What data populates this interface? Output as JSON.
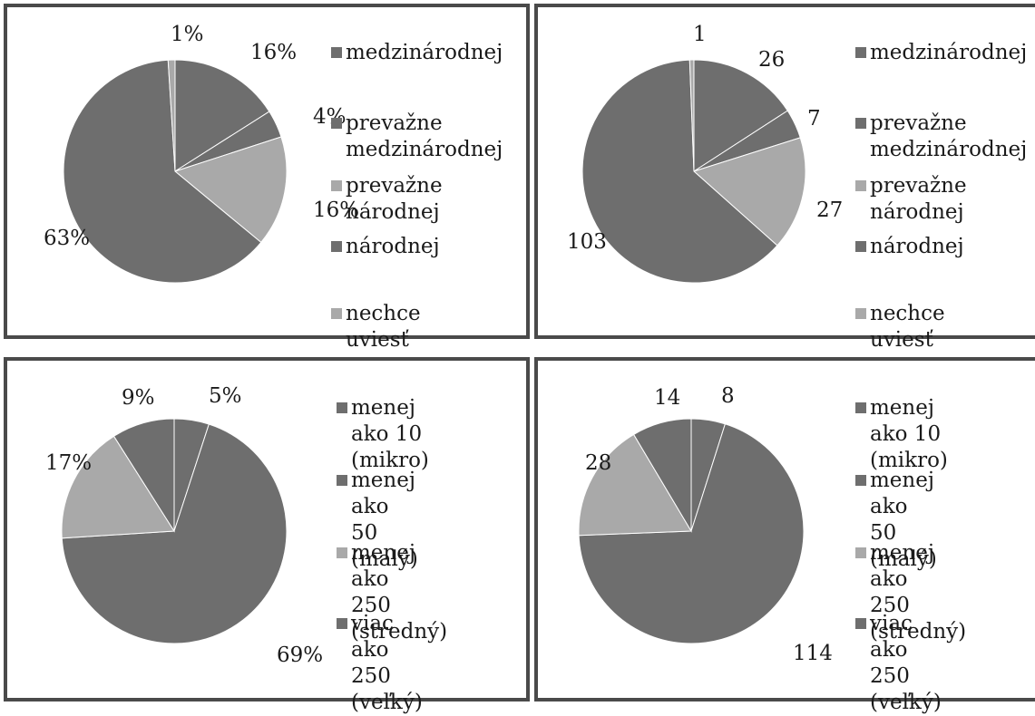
{
  "colors": {
    "slice_dark": "#6e6e6e",
    "slice_light": "#a9a9a9",
    "swatch_dark": "#6e6e6e",
    "swatch_light": "#a9a9a9",
    "border": "#4a4a4a"
  },
  "chart_data": [
    {
      "type": "pie",
      "categories": [
        "medzinárodnej",
        "prevažne medzinárodnej",
        "prevažne národnej",
        "národnej",
        "nechce uviesť"
      ],
      "values": [
        16,
        4,
        16,
        63,
        1
      ],
      "data_labels": [
        "16%",
        "4%",
        "16%",
        "63%",
        "1%"
      ],
      "slice_colors": [
        "#6e6e6e",
        "#6e6e6e",
        "#a9a9a9",
        "#6e6e6e",
        "#a9a9a9"
      ],
      "legend": {
        "position": "right",
        "items": [
          {
            "lines": [
              "medzinárodnej"
            ],
            "color": "#6e6e6e"
          },
          {
            "lines": [
              "prevažne",
              "medzinárodnej"
            ],
            "color": "#6e6e6e"
          },
          {
            "lines": [
              "prevažne",
              "národnej"
            ],
            "color": "#a9a9a9"
          },
          {
            "lines": [
              "národnej"
            ],
            "color": "#6e6e6e"
          },
          {
            "lines": [
              "nechce uviesť"
            ],
            "color": "#a9a9a9"
          }
        ]
      }
    },
    {
      "type": "pie",
      "categories": [
        "medzinárodnej",
        "prevažne medzinárodnej",
        "prevažne národnej",
        "národnej",
        "nechce uviesť"
      ],
      "values": [
        26,
        7,
        27,
        103,
        1
      ],
      "data_labels": [
        "26",
        "7",
        "27",
        "103",
        "1"
      ],
      "slice_colors": [
        "#6e6e6e",
        "#6e6e6e",
        "#a9a9a9",
        "#6e6e6e",
        "#a9a9a9"
      ],
      "legend": {
        "position": "right",
        "items": [
          {
            "lines": [
              "medzinárodnej"
            ],
            "color": "#6e6e6e"
          },
          {
            "lines": [
              "prevažne",
              "medzinárodnej"
            ],
            "color": "#6e6e6e"
          },
          {
            "lines": [
              "prevažne",
              "národnej"
            ],
            "color": "#a9a9a9"
          },
          {
            "lines": [
              "národnej"
            ],
            "color": "#6e6e6e"
          },
          {
            "lines": [
              "nechce uviesť"
            ],
            "color": "#a9a9a9"
          }
        ]
      }
    },
    {
      "type": "pie",
      "categories": [
        "menej ako 10 (mikro)",
        "menej ako 50 (malý)",
        "menej ako 250 (stredný)",
        "viac ako 250 (veľký)"
      ],
      "values": [
        5,
        69,
        17,
        9
      ],
      "data_labels": [
        "5%",
        "69%",
        "17%",
        "9%"
      ],
      "slice_colors": [
        "#6e6e6e",
        "#6e6e6e",
        "#a9a9a9",
        "#6e6e6e"
      ],
      "legend": {
        "position": "right",
        "items": [
          {
            "lines": [
              "menej ako 10",
              "(mikro)"
            ],
            "color": "#6e6e6e"
          },
          {
            "lines": [
              "menej ako 50",
              "(malý)"
            ],
            "color": "#6e6e6e"
          },
          {
            "lines": [
              "menej ako",
              "250 (stredný)"
            ],
            "color": "#a9a9a9"
          },
          {
            "lines": [
              "viac ako 250",
              "(veľký)"
            ],
            "color": "#6e6e6e"
          }
        ]
      }
    },
    {
      "type": "pie",
      "categories": [
        "menej ako 10 (mikro)",
        "menej ako 50 (malý)",
        "menej ako 250 (stredný)",
        "viac ako 250 (veľký)"
      ],
      "values": [
        8,
        114,
        28,
        14
      ],
      "data_labels": [
        "8",
        "114",
        "28",
        "14"
      ],
      "slice_colors": [
        "#6e6e6e",
        "#6e6e6e",
        "#a9a9a9",
        "#6e6e6e"
      ],
      "legend": {
        "position": "right",
        "items": [
          {
            "lines": [
              "menej ako 10",
              "(mikro)"
            ],
            "color": "#6e6e6e"
          },
          {
            "lines": [
              "menej ako 50",
              "(malý)"
            ],
            "color": "#6e6e6e"
          },
          {
            "lines": [
              "menej ako",
              "250 (stredný)"
            ],
            "color": "#a9a9a9"
          },
          {
            "lines": [
              "viac ako 250",
              "(veľký)"
            ],
            "color": "#6e6e6e"
          }
        ]
      }
    }
  ]
}
